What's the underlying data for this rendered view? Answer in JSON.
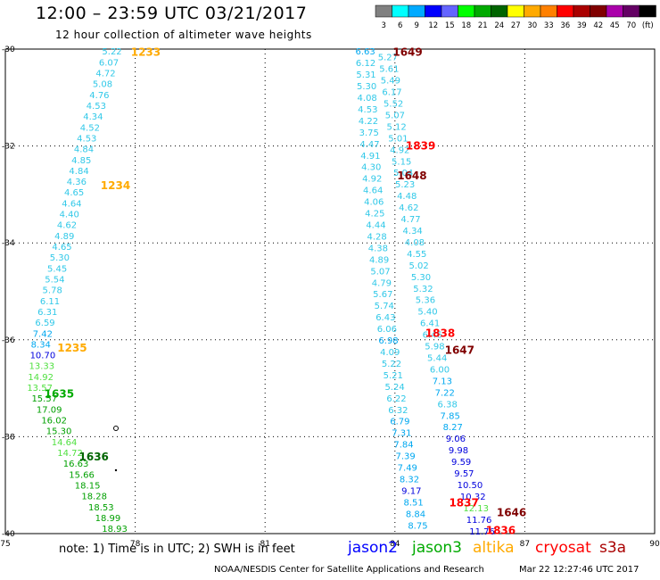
{
  "chart_data": {
    "type": "scatter",
    "title": "12:00 – 23:59 UTC 03/21/2017",
    "subtitle": "12 hour collection of altimeter wave heights",
    "xlim": [
      75,
      90
    ],
    "ylim": [
      -40,
      -30
    ],
    "x_ticks": [
      "75",
      "78",
      "81",
      "84",
      "87",
      "90"
    ],
    "y_ticks": [
      "-30",
      "-32",
      "-34",
      "-36",
      "-38",
      "-40"
    ],
    "colorbar": {
      "labels": [
        "3",
        "6",
        "9",
        "12",
        "15",
        "18",
        "21",
        "24",
        "27",
        "30",
        "33",
        "36",
        "39",
        "42",
        "45",
        "70",
        "(ft)"
      ],
      "colors": [
        "#808080",
        "#00ffff",
        "#00aaff",
        "#0000ff",
        "#6464ff",
        "#00ff00",
        "#00aa00",
        "#006400",
        "#ffff00",
        "#ffaa00",
        "#ff8000",
        "#ff0000",
        "#aa0000",
        "#800000",
        "#aa00aa",
        "#640064",
        "#000000"
      ]
    },
    "track_left": {
      "swh": [
        "5.22",
        "6.07",
        "4.72",
        "5.08",
        "4.76",
        "4.53",
        "4.34",
        "4.52",
        "4.53",
        "4.84",
        "4.85",
        "4.84",
        "4.36",
        "4.65",
        "4.64",
        "4.40",
        "4.62",
        "4.89",
        "4.65",
        "5.30",
        "5.45",
        "5.54",
        "5.78",
        "6.11",
        "6.31",
        "6.59",
        "7.42",
        "8.34",
        "10.70",
        "13.33",
        "14.92",
        "13.57",
        "15.57",
        "17.09",
        "16.02",
        "15.30",
        "14.64",
        "14.72",
        "16.63",
        "15.66",
        "18.15",
        "18.28",
        "18.53",
        "18.99",
        "18.93"
      ],
      "times": [
        {
          "label": "1233",
          "lat": -30.05
        },
        {
          "label": "1234",
          "lat": -32.8
        },
        {
          "label": "1235",
          "lat": -36.15
        },
        {
          "label": "1635",
          "lat": -37.1
        },
        {
          "label": "1636",
          "lat": -38.4
        }
      ]
    },
    "track_right": {
      "swh": [
        "6.63",
        "5.27",
        "6.12",
        "5.61",
        "5.31",
        "5.49",
        "5.30",
        "6.17",
        "4.08",
        "5.52",
        "4.53",
        "5.07",
        "4.22",
        "5.12",
        "3.75",
        "5.01",
        "4.47",
        "4.92",
        "4.91",
        "5.15",
        "4.30",
        "5.04",
        "4.92",
        "5.23",
        "4.64",
        "4.48",
        "4.06",
        "4.62",
        "4.25",
        "4.77",
        "4.44",
        "4.34",
        "4.28",
        "4.08",
        "4.38",
        "4.55",
        "4.89",
        "5.02",
        "5.07",
        "5.30",
        "4.79",
        "5.32",
        "5.67",
        "5.36",
        "5.74",
        "5.40",
        "6.43",
        "6.41",
        "6.06",
        "6.46",
        "6.98",
        "5.98",
        "4.09",
        "5.44",
        "5.22",
        "6.00",
        "5.21",
        "7.13",
        "5.24",
        "7.22",
        "6.22",
        "6.38",
        "6.32",
        "7.85",
        "6.79",
        "8.27",
        "7.31",
        "9.06",
        "7.84",
        "9.98",
        "7.39",
        "9.59",
        "7.49",
        "9.57",
        "8.32",
        "10.50",
        "9.17",
        "10.32",
        "8.51",
        "12.13",
        "8.84",
        "11.76",
        "8.75",
        "11.76"
      ],
      "times": [
        {
          "label": "1649",
          "lat": -30.05
        },
        {
          "label": "1839",
          "lat": -31.98
        },
        {
          "label": "1648",
          "lat": -32.6
        },
        {
          "label": "1838",
          "lat": -35.85
        },
        {
          "label": "1647",
          "lat": -36.2
        },
        {
          "label": "1837",
          "lat": -39.35
        },
        {
          "label": "1646",
          "lat": -39.55
        },
        {
          "label": "1836",
          "lat": -39.92
        }
      ]
    }
  },
  "note": "note:  1) Time is in UTC;  2) SWH is in feet",
  "satellites": [
    {
      "name": "jason2",
      "color": "#0000ff"
    },
    {
      "name": "jason3",
      "color": "#00aa00"
    },
    {
      "name": "altika",
      "color": "#ffaa00"
    },
    {
      "name": "cryosat",
      "color": "#ff0000"
    },
    {
      "name": "s3a",
      "color": "#aa0000"
    }
  ],
  "credit": "NOAA/NESDIS Center for Satellite Applications and Research",
  "timestamp": "Mar 22 12:27:46 UTC 2017"
}
